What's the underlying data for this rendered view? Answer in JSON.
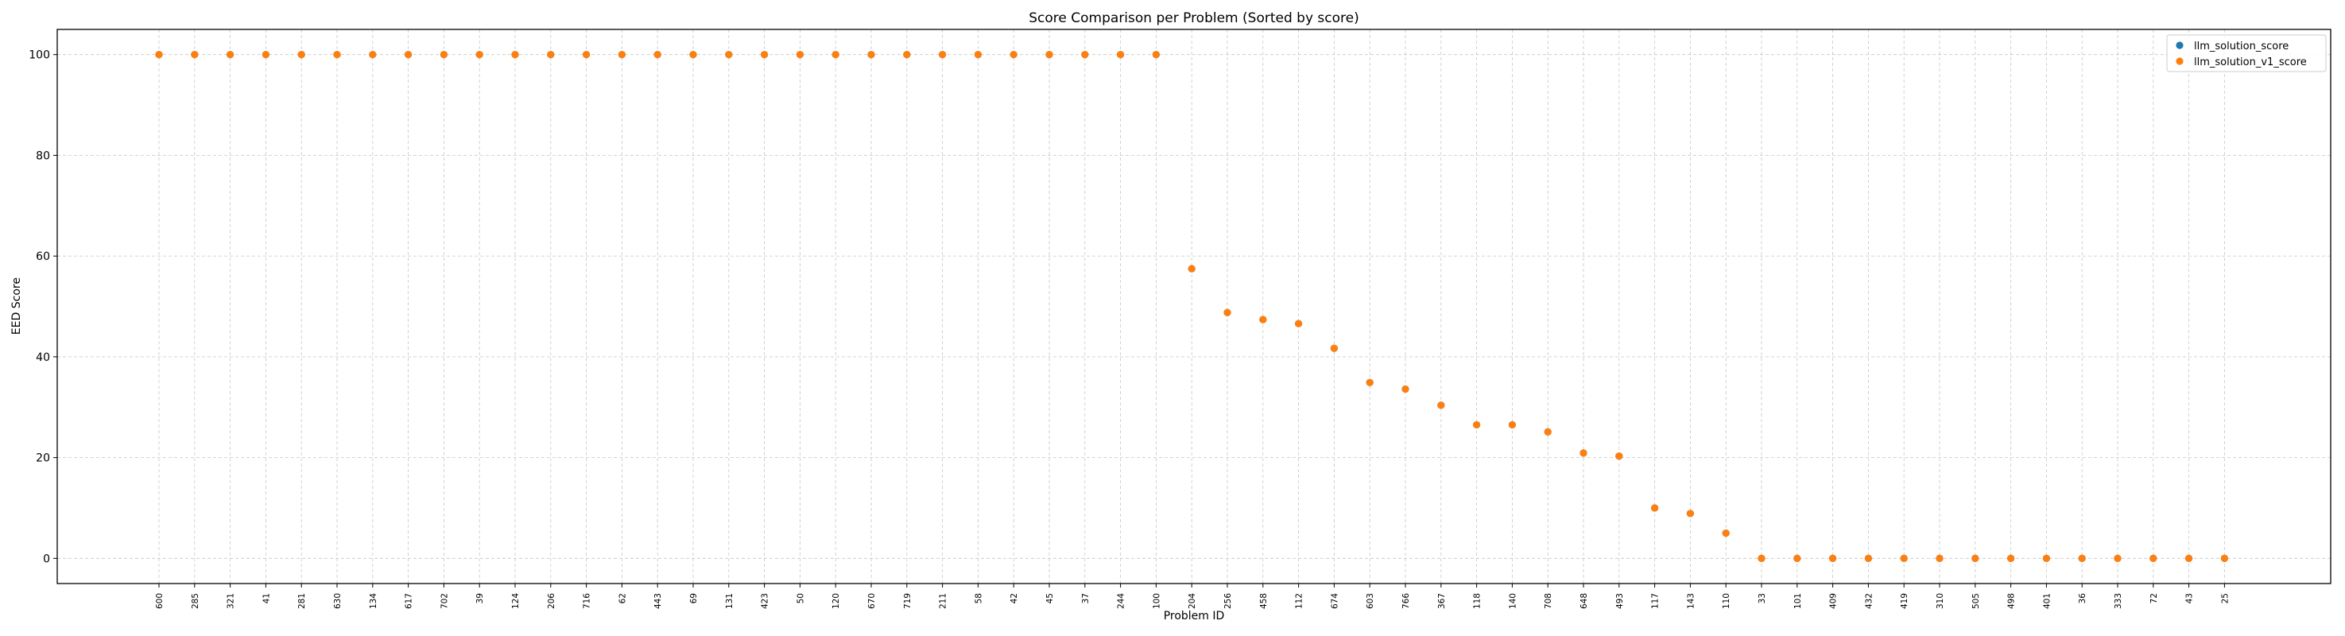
{
  "chart_data": {
    "type": "scatter",
    "title": "Score Comparison per Problem (Sorted by score)",
    "xlabel": "Problem ID",
    "ylabel": "EED Score",
    "ylim": [
      -5,
      105
    ],
    "yticks": [
      0,
      20,
      40,
      60,
      80,
      100
    ],
    "grid": true,
    "legend_position": "top-right",
    "categories": [
      "600",
      "285",
      "321",
      "41",
      "281",
      "630",
      "134",
      "617",
      "702",
      "39",
      "124",
      "206",
      "716",
      "62",
      "443",
      "69",
      "131",
      "423",
      "50",
      "120",
      "670",
      "719",
      "211",
      "58",
      "42",
      "45",
      "37",
      "244",
      "100",
      "204",
      "256",
      "458",
      "112",
      "674",
      "603",
      "766",
      "367",
      "118",
      "140",
      "708",
      "648",
      "493",
      "117",
      "143",
      "110",
      "33",
      "101",
      "409",
      "432",
      "419",
      "310",
      "505",
      "498",
      "401",
      "36",
      "333",
      "72",
      "43",
      "25"
    ],
    "series": [
      {
        "name": "llm_solution_score",
        "color": "#1f77b4",
        "values": [
          100,
          100,
          100,
          100,
          100,
          100,
          100,
          100,
          100,
          100,
          100,
          100,
          100,
          100,
          100,
          100,
          100,
          100,
          100,
          100,
          100,
          100,
          100,
          100,
          100,
          100,
          100,
          100,
          100,
          57.5,
          48.8,
          47.4,
          46.6,
          41.7,
          34.9,
          33.6,
          30.4,
          26.5,
          26.5,
          25.1,
          20.9,
          20.3,
          10.0,
          8.9,
          5.0,
          0,
          0,
          0,
          0,
          0,
          0,
          0,
          0,
          0,
          0,
          0,
          0,
          0,
          0
        ]
      },
      {
        "name": "llm_solution_v1_score",
        "color": "#ff7f0e",
        "values": [
          100,
          100,
          100,
          100,
          100,
          100,
          100,
          100,
          100,
          100,
          100,
          100,
          100,
          100,
          100,
          100,
          100,
          100,
          100,
          100,
          100,
          100,
          100,
          100,
          100,
          100,
          100,
          100,
          100,
          57.5,
          48.8,
          47.4,
          46.6,
          41.7,
          34.9,
          33.6,
          30.4,
          26.5,
          26.5,
          25.1,
          20.9,
          20.3,
          10.0,
          8.9,
          5.0,
          0,
          0,
          0,
          0,
          0,
          0,
          0,
          0,
          0,
          0,
          0,
          0,
          0,
          0
        ]
      }
    ]
  }
}
